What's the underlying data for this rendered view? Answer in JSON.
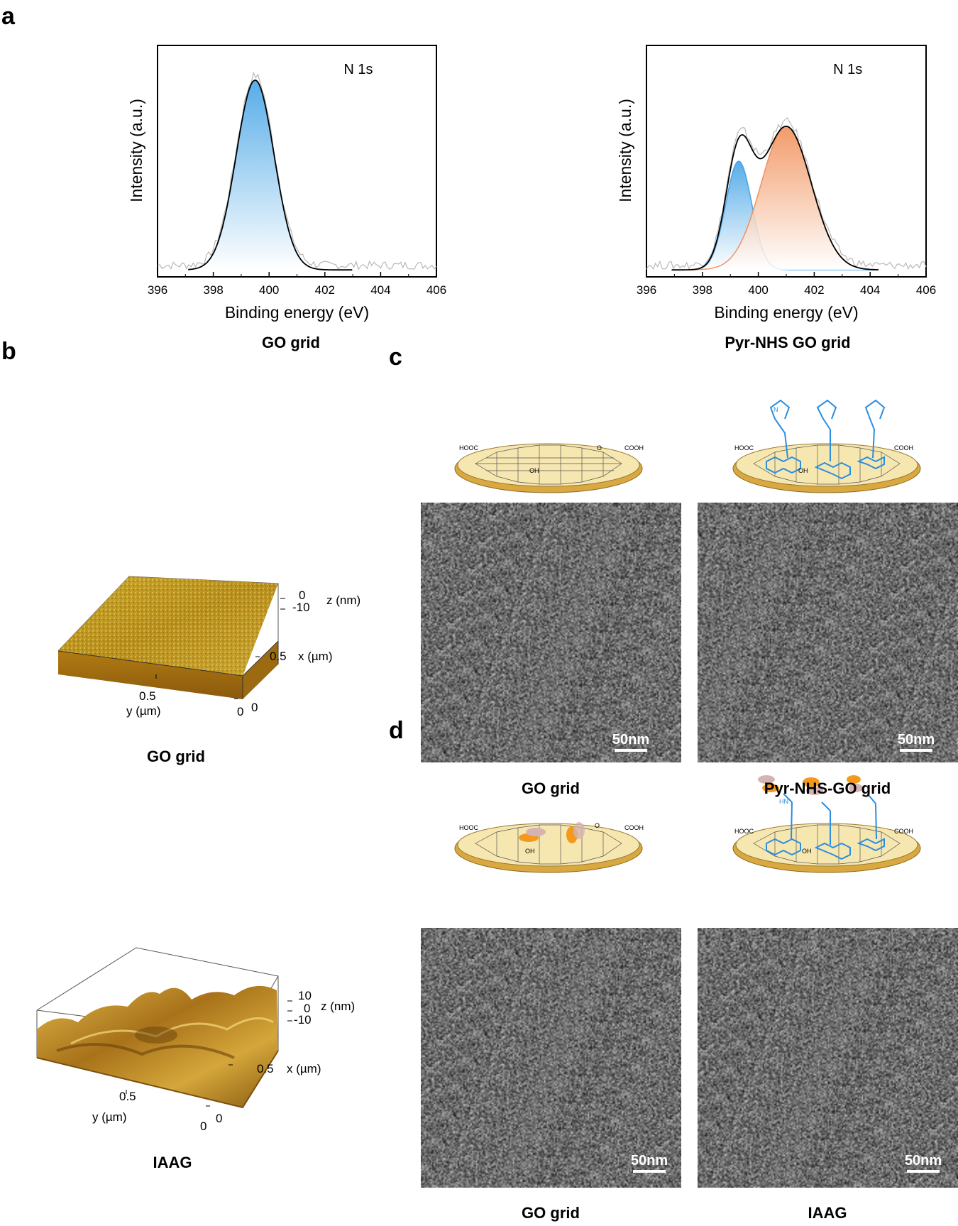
{
  "panels": {
    "a": "a",
    "b": "b",
    "c": "c",
    "d": "d"
  },
  "chart_data": [
    {
      "type": "line",
      "title": "N 1s",
      "xlabel": "Binding energy (eV)",
      "ylabel": "Intensity (a.u.)",
      "xlim": [
        396,
        406
      ],
      "xticks": [
        "396",
        "398",
        "400",
        "402",
        "404",
        "406"
      ],
      "caption": "GO grid",
      "series": [
        {
          "name": "envelope",
          "peaks": [
            {
              "center": 399.5,
              "fwhm": 1.6,
              "height": 0.82
            }
          ],
          "x_range": [
            397.1,
            403.0
          ],
          "color": "#000000"
        },
        {
          "name": "component-1",
          "peaks": [
            {
              "center": 399.5,
              "fwhm": 1.6,
              "height": 0.82
            }
          ],
          "x_range": [
            397.1,
            403.0
          ],
          "color": "#3a9ee4",
          "fill": true
        }
      ],
      "raw": {
        "x_range": [
          396,
          406
        ],
        "baseline": 0.05,
        "color": "#b8b8b8"
      }
    },
    {
      "type": "line",
      "title": "N 1s",
      "xlabel": "Binding energy (eV)",
      "ylabel": "Intensity (a.u.)",
      "xlim": [
        396,
        406
      ],
      "xticks": [
        "396",
        "398",
        "400",
        "402",
        "404",
        "406"
      ],
      "caption": "Pyr-NHS GO grid",
      "series": [
        {
          "name": "envelope",
          "peaks": [
            {
              "center": 399.3,
              "fwhm": 1.1,
              "height": 0.47
            },
            {
              "center": 401.0,
              "fwhm": 2.1,
              "height": 0.62
            }
          ],
          "x_range": [
            396.9,
            404.3
          ],
          "color": "#000000"
        },
        {
          "name": "component-1",
          "peaks": [
            {
              "center": 399.3,
              "fwhm": 1.1,
              "height": 0.47
            }
          ],
          "x_range": [
            396.9,
            404.3
          ],
          "color": "#3a9ee4",
          "fill": true
        },
        {
          "name": "component-2",
          "peaks": [
            {
              "center": 401.0,
              "fwhm": 2.1,
              "height": 0.62
            }
          ],
          "x_range": [
            396.9,
            404.3
          ],
          "color": "#f08a50",
          "fill": true
        }
      ],
      "raw": {
        "x_range": [
          396,
          406
        ],
        "baseline": 0.05,
        "color": "#b8b8b8"
      }
    }
  ],
  "afm": [
    {
      "caption": "GO grid",
      "z_label": "z (nm)",
      "z_ticks": [
        "0",
        "-10"
      ],
      "x_label": "x (µm)",
      "x_ticks": [
        "0.5",
        "0"
      ],
      "y_label": "y (µm)",
      "y_ticks": [
        "0.5",
        "0"
      ]
    },
    {
      "caption": "IAAG",
      "z_label": "z (nm)",
      "z_ticks": [
        "10",
        "0",
        "-10"
      ],
      "x_label": "x (µm)",
      "x_ticks": [
        "0.5",
        "0"
      ],
      "y_label": "y (µm)",
      "y_ticks": [
        "0.5",
        "0"
      ]
    }
  ],
  "schematic_labels": {
    "cooh": "COOH",
    "hooc": "HOOC",
    "oh": "OH",
    "o": "O",
    "n": "N",
    "hn": "HN"
  },
  "em": {
    "scale_label": "50nm",
    "c": {
      "left_caption": "GO grid",
      "right_caption": "Pyr-NHS-GO grid"
    },
    "d": {
      "left_caption": "GO grid",
      "right_caption": "IAAG"
    }
  }
}
